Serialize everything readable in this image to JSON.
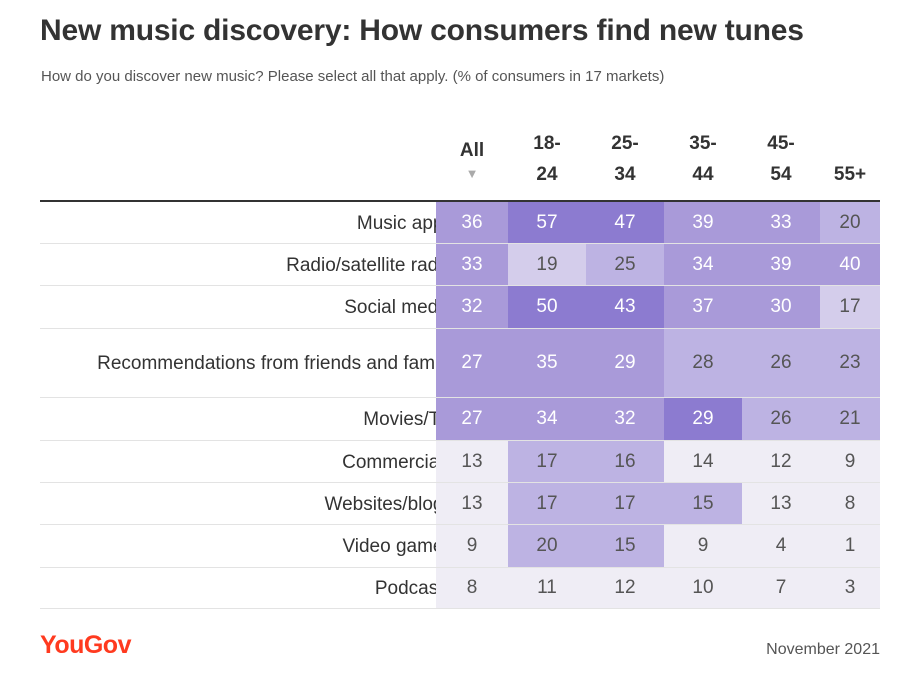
{
  "title": "New music discovery: How consumers find new tunes",
  "subtitle": "How do you discover new music? Please select all that apply. (% of consumers in 17 markets)",
  "sort_indicator": "▼",
  "brand": "YouGov",
  "date": "November 2021",
  "colors": {
    "scale": [
      "#efedf5",
      "#d4cdeb",
      "#bdb3e3",
      "#a99ad9",
      "#8c7bd0"
    ]
  },
  "chart_data": {
    "type": "table",
    "title": "New music discovery: How consumers find new tunes",
    "subtitle": "How do you discover new music? Please select all that apply. (% of consumers in 17 markets)",
    "columns": [
      {
        "line1": "All",
        "line2": ""
      },
      {
        "line1": "18-",
        "line2": "24"
      },
      {
        "line1": "25-",
        "line2": "34"
      },
      {
        "line1": "35-",
        "line2": "44"
      },
      {
        "line1": "45-",
        "line2": "54"
      },
      {
        "line1": "",
        "line2": "55+"
      }
    ],
    "rows": [
      {
        "label": "Music apps",
        "values": [
          36,
          57,
          47,
          39,
          33,
          20
        ]
      },
      {
        "label": "Radio/satellite radio",
        "values": [
          33,
          19,
          25,
          34,
          39,
          40
        ]
      },
      {
        "label": "Social media",
        "values": [
          32,
          50,
          43,
          37,
          30,
          17
        ]
      },
      {
        "label": "Recommendations from friends and family",
        "values": [
          27,
          35,
          29,
          28,
          26,
          23
        ]
      },
      {
        "label": "Movies/TV",
        "values": [
          27,
          34,
          32,
          29,
          26,
          21
        ]
      },
      {
        "label": "Commercials",
        "values": [
          13,
          17,
          16,
          14,
          12,
          9
        ]
      },
      {
        "label": "Websites/blogs",
        "values": [
          13,
          17,
          17,
          15,
          13,
          8
        ]
      },
      {
        "label": "Video games",
        "values": [
          9,
          20,
          15,
          9,
          4,
          1
        ]
      },
      {
        "label": "Podcasts",
        "values": [
          8,
          11,
          12,
          10,
          7,
          3
        ]
      }
    ],
    "shade_levels": [
      [
        3,
        4,
        4,
        3,
        3,
        2
      ],
      [
        3,
        1,
        2,
        3,
        3,
        3
      ],
      [
        3,
        4,
        4,
        3,
        3,
        1
      ],
      [
        3,
        3,
        3,
        2,
        2,
        2
      ],
      [
        3,
        3,
        3,
        4,
        2,
        2
      ],
      [
        0,
        2,
        2,
        0,
        0,
        0
      ],
      [
        0,
        2,
        2,
        2,
        0,
        0
      ],
      [
        0,
        2,
        2,
        0,
        0,
        0
      ],
      [
        0,
        0,
        0,
        0,
        0,
        0
      ]
    ]
  }
}
